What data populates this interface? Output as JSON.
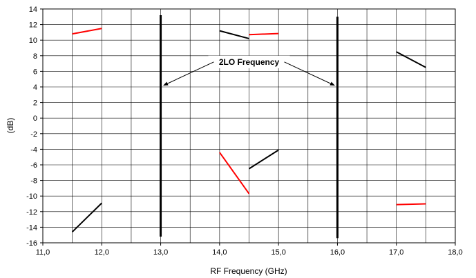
{
  "chart_data": {
    "type": "line",
    "title": "",
    "xlabel": "RF Frequency (GHz)",
    "ylabel": "(dB)",
    "xlim": [
      11.0,
      18.0
    ],
    "ylim": [
      -16,
      14
    ],
    "x_major_step": 1.0,
    "x_minor_step": 0.5,
    "y_step": 2,
    "x_tick_labels": [
      "11,0",
      "12,0",
      "13,0",
      "14,0",
      "15,0",
      "16,0",
      "17,0",
      "18,0"
    ],
    "y_tick_labels": [
      "-16",
      "-14",
      "-12",
      "-10",
      "-8",
      "-6",
      "-4",
      "-2",
      "0",
      "2",
      "4",
      "6",
      "8",
      "10",
      "12",
      "14"
    ],
    "grid": true,
    "legend": "none",
    "colors": {
      "red": "#ff0000",
      "black": "#000000"
    },
    "segments": [
      {
        "color": "red",
        "x": [
          11.5,
          12.0
        ],
        "y": [
          10.8,
          11.5
        ]
      },
      {
        "color": "black",
        "x": [
          11.5,
          12.0
        ],
        "y": [
          -14.6,
          -10.9
        ]
      },
      {
        "color": "black",
        "x": [
          14.0,
          14.5
        ],
        "y": [
          11.2,
          10.2
        ]
      },
      {
        "color": "red",
        "x": [
          14.5,
          15.0
        ],
        "y": [
          10.7,
          10.85
        ]
      },
      {
        "color": "red",
        "x": [
          14.0,
          14.5
        ],
        "y": [
          -4.4,
          -9.7
        ]
      },
      {
        "color": "black",
        "x": [
          14.5,
          15.0
        ],
        "y": [
          -6.5,
          -4.1
        ]
      },
      {
        "color": "black",
        "x": [
          17.0,
          17.5
        ],
        "y": [
          8.5,
          6.5
        ]
      },
      {
        "color": "red",
        "x": [
          17.0,
          17.5
        ],
        "y": [
          -11.1,
          -11.0
        ]
      }
    ],
    "vertical_markers": [
      {
        "x": 13.0,
        "y": [
          -15.2,
          13.2
        ]
      },
      {
        "x": 16.0,
        "y": [
          -15.4,
          13.0
        ]
      }
    ],
    "annotations": [
      {
        "text": "2LO Frequency",
        "anchor_x": 14.5,
        "anchor_y": 7.2,
        "arrows_to": [
          [
            13.05,
            4.2
          ],
          [
            15.95,
            4.2
          ]
        ]
      }
    ]
  }
}
